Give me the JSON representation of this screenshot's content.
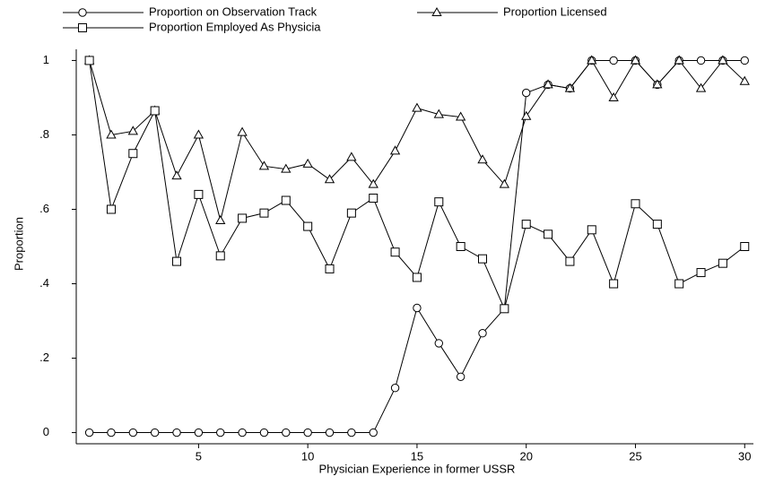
{
  "chart_data": {
    "type": "line",
    "x_label": "Physician Experience in former USSR",
    "y_label": "Proportion",
    "x": [
      0,
      1,
      2,
      3,
      4,
      5,
      6,
      7,
      8,
      9,
      10,
      11,
      12,
      13,
      14,
      15,
      16,
      17,
      18,
      19,
      20,
      21,
      22,
      23,
      24,
      25,
      26,
      27,
      28,
      29,
      30
    ],
    "series": [
      {
        "name": "Proportion on Observation Track",
        "color": "#000000",
        "marker": "circle",
        "values": [
          0,
          0,
          0,
          0,
          0,
          0,
          0,
          0,
          0,
          0,
          0,
          0,
          0,
          0,
          0.12,
          0.335,
          0.24,
          0.15,
          0.267,
          0.333,
          0.913,
          0.935,
          0.925,
          1,
          1,
          1,
          0.935,
          1,
          1,
          1,
          1
        ]
      },
      {
        "name": "Proportion Licensed",
        "color": "#000000",
        "marker": "triangle",
        "values": [
          1,
          0.8,
          0.81,
          0.865,
          0.69,
          0.8,
          0.57,
          0.807,
          0.716,
          0.708,
          0.722,
          0.68,
          0.74,
          0.667,
          0.757,
          0.872,
          0.855,
          0.848,
          0.733,
          0.667,
          0.85,
          0.935,
          0.925,
          1,
          0.9,
          1,
          0.935,
          1,
          0.925,
          1,
          0.944
        ]
      },
      {
        "name": "Proportion Employed As Physicia",
        "color": "#000000",
        "marker": "square",
        "values": [
          1,
          0.6,
          0.75,
          0.865,
          0.46,
          0.64,
          0.475,
          0.576,
          0.59,
          0.624,
          0.554,
          0.44,
          0.59,
          0.63,
          0.485,
          0.417,
          0.62,
          0.5,
          0.467,
          0.333,
          0.56,
          0.533,
          0.46,
          0.545,
          0.4,
          0.615,
          0.56,
          0.4,
          0.43,
          0.455,
          0.5
        ]
      }
    ],
    "xlim": [
      -0.6,
      30.4
    ],
    "ylim": [
      -0.03,
      1.03
    ],
    "xticks": [
      5,
      10,
      15,
      20,
      25,
      30
    ],
    "yticks": [
      0,
      {
        "value": 0.2,
        "label": ".2"
      },
      {
        "value": 0.4,
        "label": ".4"
      },
      {
        "value": 0.6,
        "label": ".6"
      },
      {
        "value": 0.8,
        "label": ".8"
      },
      1
    ]
  }
}
